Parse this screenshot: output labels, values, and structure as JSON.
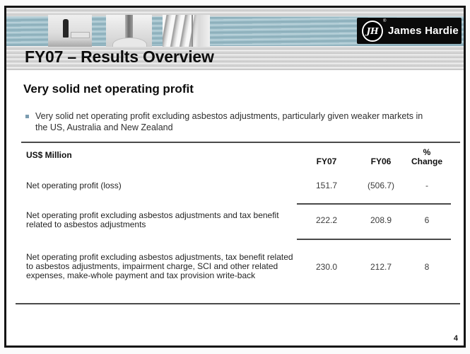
{
  "header": {
    "logo": {
      "monogram": "JH",
      "registered_mark": "®",
      "brand": "James Hardie"
    },
    "photos": [
      "person-in-gallery-photo",
      "column-detail-photo",
      "louvre-facade-photo"
    ],
    "title": "FY07 – Results Overview"
  },
  "content": {
    "heading": "Very solid net operating profit",
    "bullet_text": "Very solid net operating profit excluding asbestos adjustments, particularly given weaker markets in the US, Australia and New Zealand"
  },
  "table": {
    "unit_label": "US$ Million",
    "columns": [
      "FY07",
      "FY06",
      "%\nChange"
    ],
    "rows": [
      {
        "label": "Net operating profit (loss)",
        "fy07": "151.7",
        "fy06": "(506.7)",
        "change": "-"
      },
      {
        "label": "Net operating profit excluding asbestos adjustments and tax benefit related to asbestos adjustments",
        "fy07": "222.2",
        "fy06": "208.9",
        "change": "6"
      },
      {
        "label": "Net operating profit excluding asbestos adjustments, tax benefit related to asbestos adjustments, impairment charge, SCI and other related expenses, make-whole payment and tax provision write-back",
        "fy07": "230.0",
        "fy06": "212.7",
        "change": "8"
      }
    ]
  },
  "footer": {
    "page_number": "4"
  },
  "colors": {
    "band_blue": "#9dbfca",
    "bullet_square": "#7b9cb0",
    "table_rule": "#4a4a4a",
    "slide_border": "#141414"
  }
}
